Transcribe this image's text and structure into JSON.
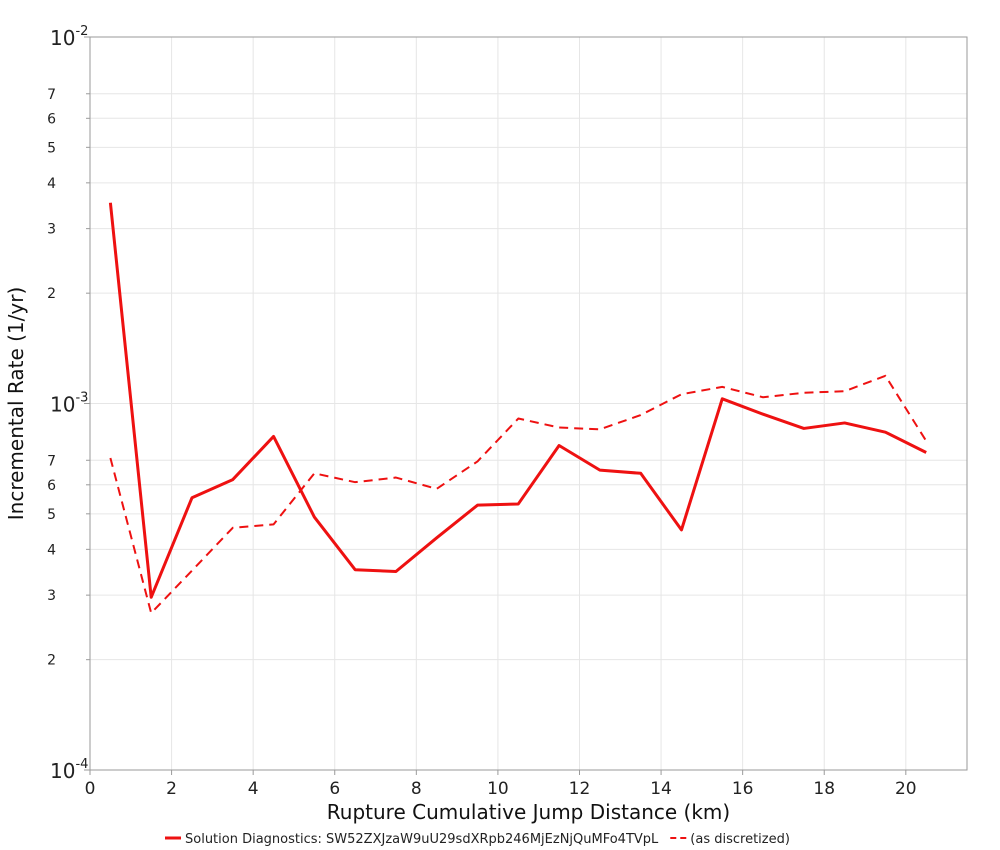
{
  "chart_data": {
    "type": "line",
    "title": "",
    "xlabel": "Rupture Cumulative Jump Distance (km)",
    "ylabel": "Incremental Rate (1/yr)",
    "xlim": [
      0,
      21.5
    ],
    "ylim": [
      0.0001,
      0.01
    ],
    "y_scale": "log",
    "grid": true,
    "legend_position": "bottom",
    "x_ticks": [
      "0",
      "2",
      "4",
      "6",
      "8",
      "10",
      "12",
      "14",
      "16",
      "18",
      "20"
    ],
    "y_major_ticks": [
      {
        "value": 0.01,
        "base": "10",
        "exp": "-2"
      },
      {
        "value": 0.001,
        "base": "10",
        "exp": "-3"
      },
      {
        "value": 0.0001,
        "base": "10",
        "exp": "-4"
      }
    ],
    "y_minor_ticks": [
      {
        "value": 0.007,
        "label": "7"
      },
      {
        "value": 0.006,
        "label": "6"
      },
      {
        "value": 0.005,
        "label": "5"
      },
      {
        "value": 0.004,
        "label": "4"
      },
      {
        "value": 0.003,
        "label": "3"
      },
      {
        "value": 0.002,
        "label": "2"
      },
      {
        "value": 0.0007,
        "label": "7"
      },
      {
        "value": 0.0006,
        "label": "6"
      },
      {
        "value": 0.0005,
        "label": "5"
      },
      {
        "value": 0.0004,
        "label": "4"
      },
      {
        "value": 0.0003,
        "label": "3"
      },
      {
        "value": 0.0002,
        "label": "2"
      }
    ],
    "x": [
      0.5,
      1.5,
      2.5,
      3.5,
      4.5,
      5.5,
      6.5,
      7.5,
      8.5,
      9.5,
      10.5,
      11.5,
      12.5,
      13.5,
      14.5,
      15.5,
      16.5,
      17.5,
      18.5,
      19.5,
      20.5
    ],
    "series": [
      {
        "name": "Solution Diagnostics: SW52ZXJzaW9uU29sdXRpb246MjEzNjQuMFo4TVpL",
        "color": "#ee1111",
        "style": "solid",
        "values": [
          0.00353,
          0.000296,
          0.000553,
          0.00062,
          0.000813,
          0.00049,
          0.000352,
          0.000348,
          0.00043,
          0.000528,
          0.000532,
          0.000768,
          0.000658,
          0.000645,
          0.000452,
          0.00103,
          0.000935,
          0.000855,
          0.000885,
          0.000835,
          0.000735
        ]
      },
      {
        "name": "(as discretized)",
        "color": "#ee1111",
        "style": "dashed",
        "values": [
          0.00071,
          0.000268,
          0.00035,
          0.000458,
          0.000468,
          0.000645,
          0.00061,
          0.000628,
          0.000585,
          0.000695,
          0.00091,
          0.00086,
          0.00085,
          0.00093,
          0.00106,
          0.00111,
          0.00104,
          0.00107,
          0.00108,
          0.00119,
          0.00079
        ]
      }
    ]
  }
}
